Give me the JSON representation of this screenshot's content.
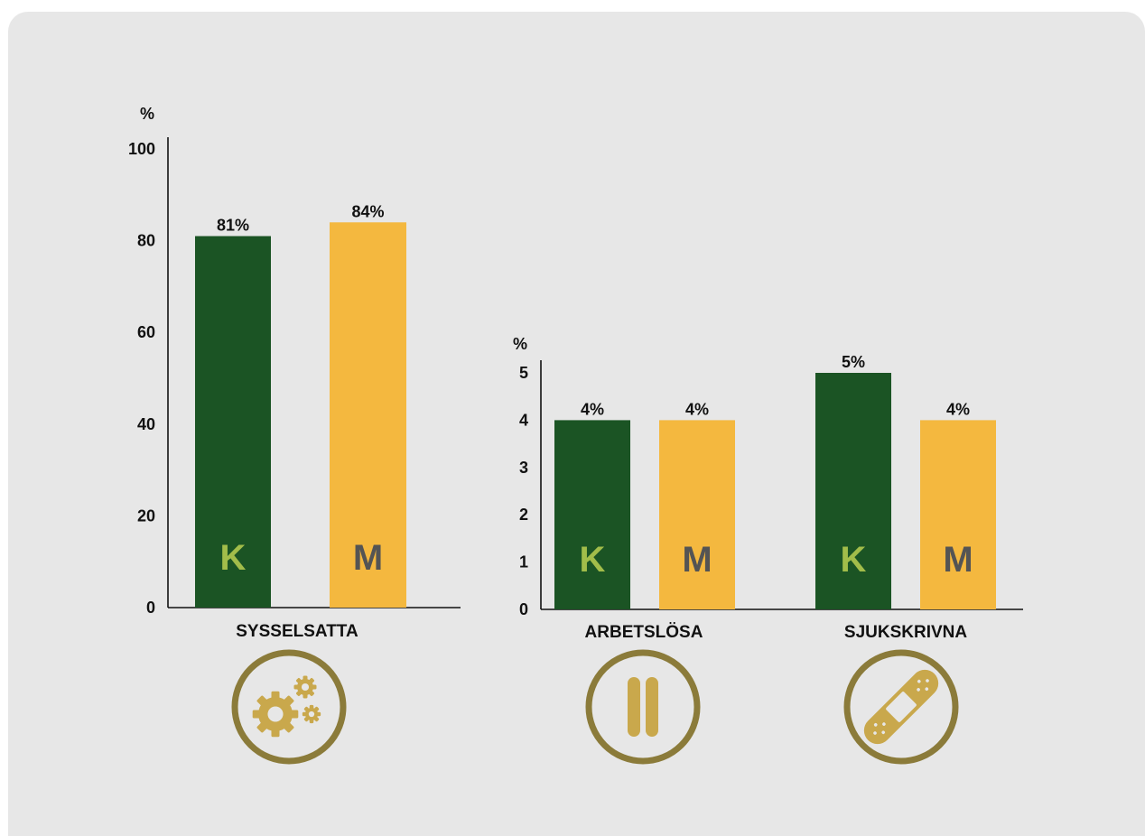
{
  "colors": {
    "women_bar": "#1b5424",
    "men_bar": "#f4b83f",
    "women_letter": "#a2bd4a",
    "men_letter": "#545454",
    "icon_gold": "#c9a84c",
    "icon_ring": "#8b7b3a"
  },
  "chart_data": [
    {
      "type": "bar",
      "unit_label": "%",
      "ylim": [
        0,
        100
      ],
      "yticks": [
        "0",
        "20",
        "40",
        "60",
        "80",
        "100"
      ],
      "groups": [
        {
          "category": "SYSSELSATTA",
          "icon": "gears-icon",
          "bars": [
            {
              "series": "K",
              "value": 81,
              "label": "81%"
            },
            {
              "series": "M",
              "value": 84,
              "label": "84%"
            }
          ]
        }
      ]
    },
    {
      "type": "bar",
      "unit_label": "%",
      "ylim": [
        0,
        5
      ],
      "yticks": [
        "0",
        "1",
        "2",
        "3",
        "4",
        "5"
      ],
      "groups": [
        {
          "category": "ARBETSLÖSA",
          "icon": "pause-icon",
          "bars": [
            {
              "series": "K",
              "value": 4,
              "label": "4%"
            },
            {
              "series": "M",
              "value": 4,
              "label": "4%"
            }
          ]
        },
        {
          "category": "SJUKSKRIVNA",
          "icon": "bandage-icon",
          "bars": [
            {
              "series": "K",
              "value": 5,
              "label": "5%"
            },
            {
              "series": "M",
              "value": 4,
              "label": "4%"
            }
          ]
        }
      ]
    }
  ]
}
